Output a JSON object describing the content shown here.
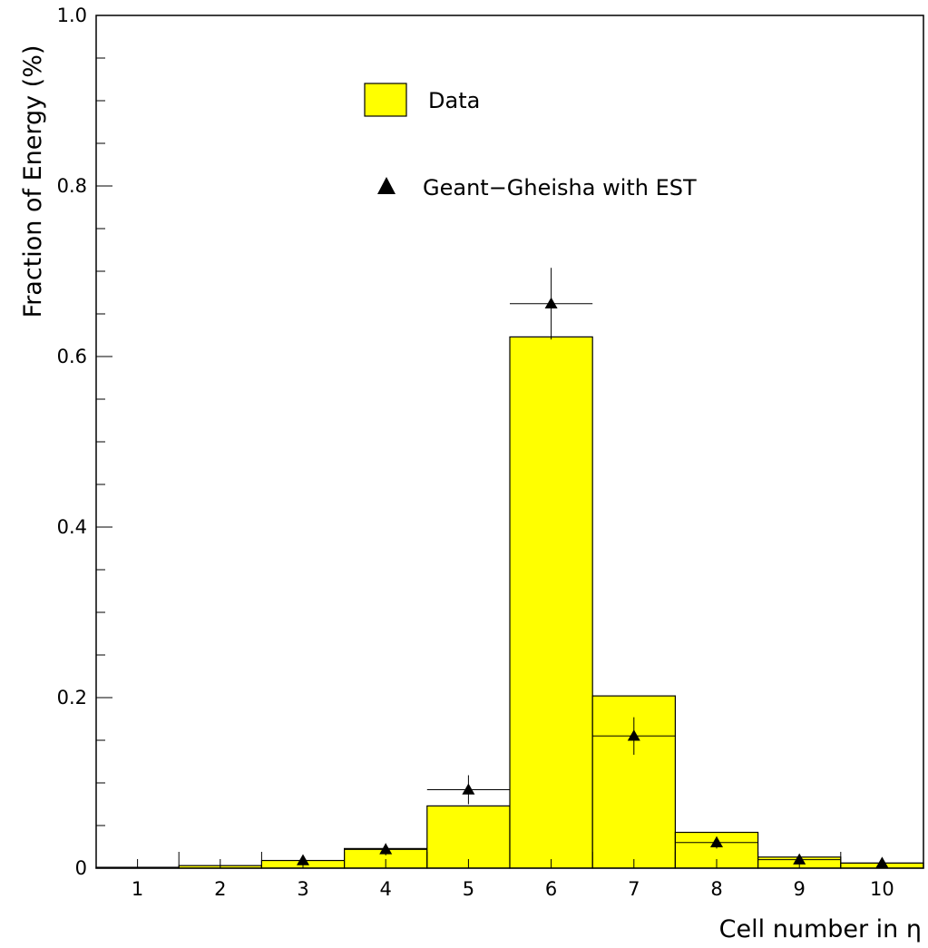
{
  "chart_data": {
    "type": "bar",
    "title": "",
    "xlabel": "Cell number in η",
    "ylabel": "Fraction of Energy (%)",
    "xlim": [
      0.5,
      10.5
    ],
    "ylim": [
      0,
      1.0
    ],
    "grid": false,
    "legend_position": "top-center",
    "x_tick_labels": [
      "1",
      "2",
      "3",
      "4",
      "5",
      "6",
      "7",
      "8",
      "9",
      "10"
    ],
    "y_tick_labels": [
      "0",
      "0.2",
      "0.4",
      "0.6",
      "0.8",
      "1.0"
    ],
    "y_tick_values": [
      0,
      0.2,
      0.4,
      0.6,
      0.8,
      1.0
    ],
    "legend": {
      "bar_label": "Data",
      "marker_label": "Geant−Gheisha with EST"
    },
    "colors": {
      "bar_fill": "#ffff00",
      "bar_stroke": "#000000",
      "marker": "#000000"
    },
    "series": [
      {
        "name": "Data",
        "kind": "histogram",
        "x": [
          1,
          2,
          3,
          4,
          5,
          6,
          7,
          8,
          9,
          10
        ],
        "values": [
          0.001,
          0.003,
          0.009,
          0.023,
          0.073,
          0.623,
          0.202,
          0.042,
          0.013,
          0.006
        ]
      },
      {
        "name": "Geant−Gheisha with EST",
        "kind": "points",
        "marker": "triangle-up",
        "x": [
          3,
          4,
          5,
          6,
          7,
          8,
          9,
          10
        ],
        "values": [
          0.009,
          0.022,
          0.092,
          0.662,
          0.155,
          0.03,
          0.01,
          0.006
        ],
        "y_err": [
          0.003,
          0.007,
          0.017,
          0.042,
          0.022,
          0.007,
          0.003,
          0.002
        ],
        "x_err": [
          0.5,
          0.5,
          0.5,
          0.5,
          0.5,
          0.5,
          0.5,
          0.5
        ]
      }
    ]
  }
}
